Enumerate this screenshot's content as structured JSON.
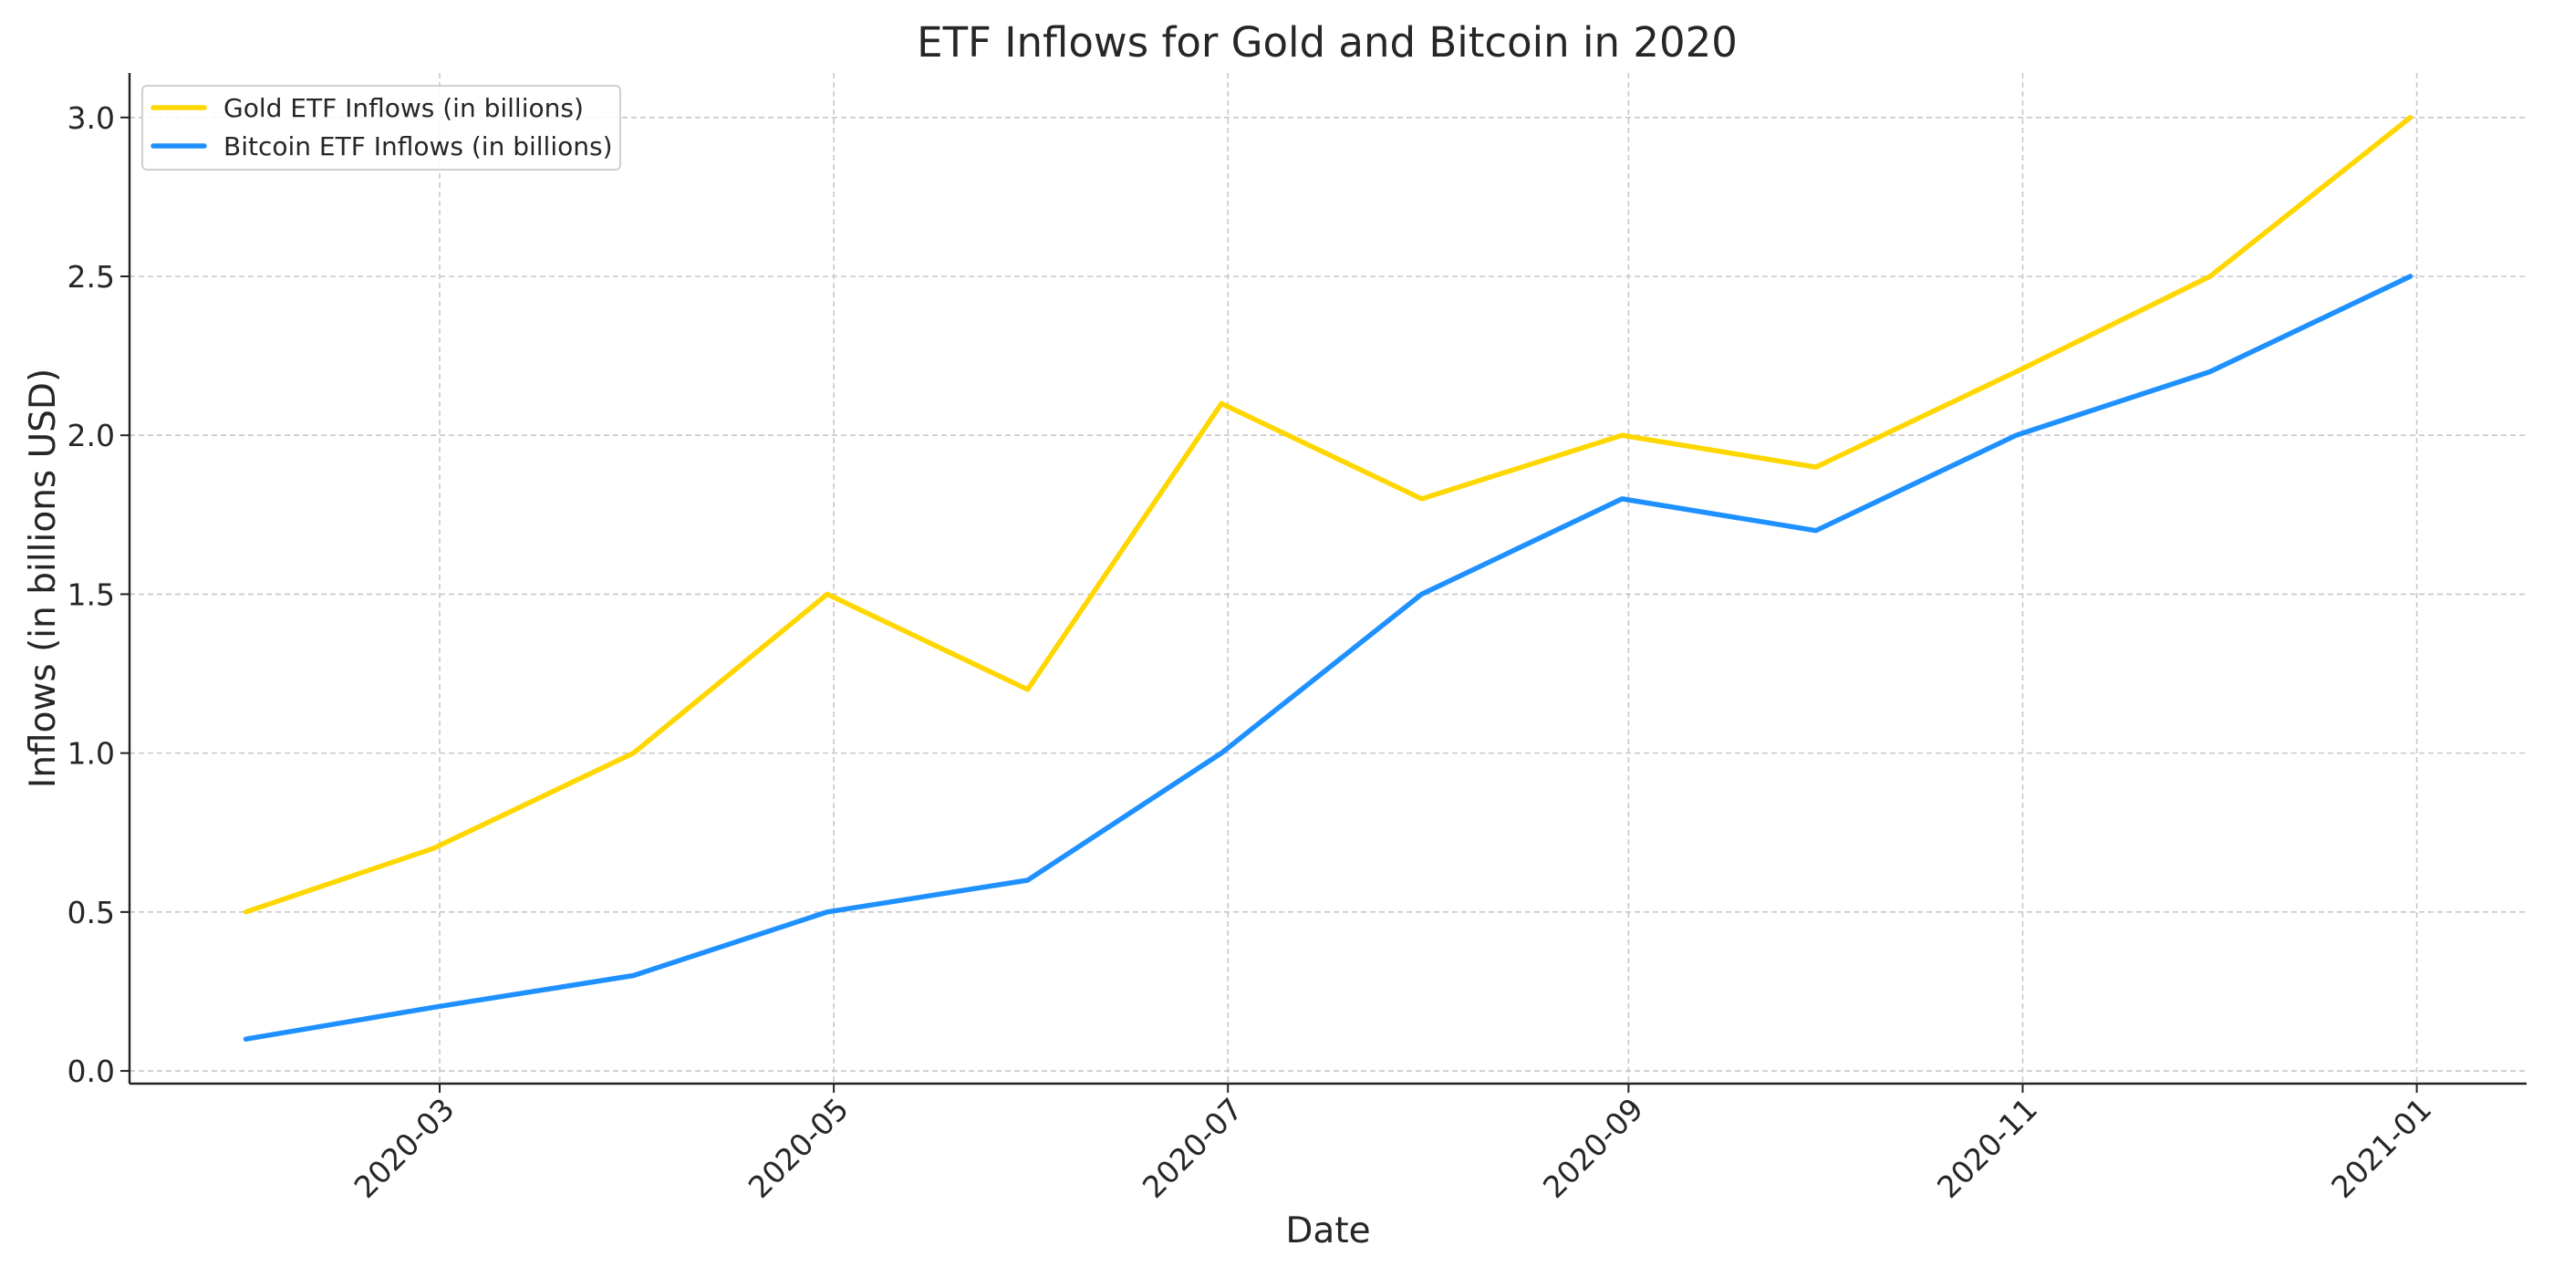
{
  "chart_data": {
    "type": "line",
    "title": "ETF Inflows for Gold and Bitcoin in 2020",
    "xlabel": "Date",
    "ylabel": "Inflows (in billions USD)",
    "x": [
      "2020-01-31",
      "2020-02-29",
      "2020-03-31",
      "2020-04-30",
      "2020-05-31",
      "2020-06-30",
      "2020-07-31",
      "2020-08-31",
      "2020-09-30",
      "2020-10-31",
      "2020-11-30",
      "2020-12-31"
    ],
    "xlim": [
      "2020-01-13",
      "2021-01-18"
    ],
    "xticks": [
      "2020-03-01",
      "2020-05-01",
      "2020-07-01",
      "2020-09-01",
      "2020-11-01",
      "2021-01-01"
    ],
    "xtick_labels": [
      "2020-03",
      "2020-05",
      "2020-07",
      "2020-09",
      "2020-11",
      "2021-01"
    ],
    "ylim": [
      -0.04,
      3.14
    ],
    "yticks": [
      0.0,
      0.5,
      1.0,
      1.5,
      2.0,
      2.5,
      3.0
    ],
    "ytick_labels": [
      "0.0",
      "0.5",
      "1.0",
      "1.5",
      "2.0",
      "2.5",
      "3.0"
    ],
    "grid": true,
    "legend_position": "top-left",
    "series": [
      {
        "name": "Gold ETF Inflows (in billions)",
        "color": "#FFD700",
        "values": [
          0.5,
          0.7,
          1.0,
          1.5,
          1.2,
          2.1,
          1.8,
          2.0,
          1.9,
          2.2,
          2.5,
          3.0
        ]
      },
      {
        "name": "Bitcoin ETF Inflows (in billions)",
        "color": "#1E90FF",
        "values": [
          0.1,
          0.2,
          0.3,
          0.5,
          0.6,
          1.0,
          1.5,
          1.8,
          1.7,
          2.0,
          2.2,
          2.5
        ]
      }
    ]
  }
}
